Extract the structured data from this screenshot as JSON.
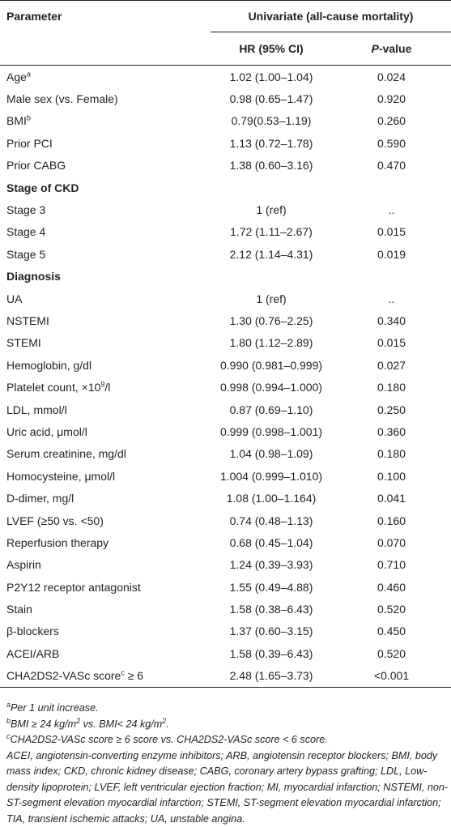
{
  "table": {
    "header": {
      "parameter": "Parameter",
      "group": "Univariate (all-cause mortality)",
      "columns": [
        [
          "HR (95% CI)"
        ],
        [
          {
            "i": "P"
          },
          "-value"
        ]
      ]
    },
    "rows": [
      {
        "label": [
          "Age",
          {
            "sup": "a"
          }
        ],
        "hr": "1.02 (1.00–1.04)",
        "p": "0.024"
      },
      {
        "label": [
          "Male sex (vs. Female)"
        ],
        "hr": "0.98 (0.65–1.47)",
        "p": "0.920"
      },
      {
        "label": [
          "BMI",
          {
            "sup": "b"
          }
        ],
        "hr": "0.79(0.53–1.19)",
        "p": "0.260"
      },
      {
        "label": [
          "Prior PCI"
        ],
        "hr": "1.13 (0.72–1.78)",
        "p": "0.590"
      },
      {
        "label": [
          "Prior CABG"
        ],
        "hr": "1.38 (0.60–3.16)",
        "p": "0.470"
      },
      {
        "section": "Stage of CKD"
      },
      {
        "label": [
          "Stage 3"
        ],
        "hr": "1 (ref)",
        "p": ".."
      },
      {
        "label": [
          "Stage 4"
        ],
        "hr": "1.72 (1.11–2.67)",
        "p": "0.015"
      },
      {
        "label": [
          "Stage 5"
        ],
        "hr": "2.12 (1.14–4.31)",
        "p": "0.019"
      },
      {
        "section": "Diagnosis"
      },
      {
        "label": [
          "UA"
        ],
        "hr": "1 (ref)",
        "p": ".."
      },
      {
        "label": [
          "NSTEMI"
        ],
        "hr": "1.30 (0.76–2.25)",
        "p": "0.340"
      },
      {
        "label": [
          "STEMI"
        ],
        "hr": "1.80 (1.12–2.89)",
        "p": "0.015"
      },
      {
        "label": [
          "Hemoglobin, g/dl"
        ],
        "hr": "0.990 (0.981–0.999)",
        "p": "0.027"
      },
      {
        "label": [
          "Platelet count, ×10",
          {
            "sup": "9"
          },
          "/l"
        ],
        "hr": "0.998 (0.994–1.000)",
        "p": "0.180"
      },
      {
        "label": [
          "LDL, mmol/l"
        ],
        "hr": "0.87 (0.69–1.10)",
        "p": "0.250"
      },
      {
        "label": [
          "Uric acid, μmol/l"
        ],
        "hr": "0.999 (0.998–1.001)",
        "p": "0.360"
      },
      {
        "label": [
          "Serum creatinine, mg/dl"
        ],
        "hr": "1.04 (0.98–1.09)",
        "p": "0.180"
      },
      {
        "label": [
          "Homocysteine, μmol/l"
        ],
        "hr": "1.004 (0.999–1.010)",
        "p": "0.100"
      },
      {
        "label": [
          "D-dimer, mg/l"
        ],
        "hr": "1.08 (1.00–1.164)",
        "p": "0.041"
      },
      {
        "label": [
          "LVEF (≥50 vs. <50)"
        ],
        "hr": "0.74 (0.48–1.13)",
        "p": "0.160"
      },
      {
        "label": [
          "Reperfusion therapy"
        ],
        "hr": "0.68 (0.45–1.04)",
        "p": "0.070"
      },
      {
        "label": [
          "Aspirin"
        ],
        "hr": "1.24 (0.39–3.93)",
        "p": "0.710"
      },
      {
        "label": [
          "P2Y12 receptor antagonist"
        ],
        "hr": "1.55 (0.49–4.88)",
        "p": "0.460"
      },
      {
        "label": [
          "Stain"
        ],
        "hr": "1.58 (0.38–6.43)",
        "p": "0.520"
      },
      {
        "label": [
          "β-blockers"
        ],
        "hr": "1.37 (0.60–3.15)",
        "p": "0.450"
      },
      {
        "label": [
          "ACEI/ARB"
        ],
        "hr": "1.58 (0.39–6.43)",
        "p": "0.520"
      },
      {
        "label": [
          "CHA2DS2-VASc score",
          {
            "sup": "c"
          },
          " ≥ 6"
        ],
        "hr": "2.48 (1.65–3.73)",
        "p": "<0.001"
      }
    ]
  },
  "footnotes": [
    [
      {
        "sup": "a"
      },
      "Per 1 unit increase."
    ],
    [
      {
        "sup": "b"
      },
      "BMI ≥ 24 kg/m",
      {
        "sup": "2"
      },
      " vs. BMI< 24 kg/m",
      {
        "sup": "2"
      },
      "."
    ],
    [
      {
        "sup": "c"
      },
      "CHA2DS2-VASc score ≥ 6 score vs. CHA2DS2-VASc score < 6 score."
    ],
    [
      "ACEI, angiotensin-converting enzyme inhibitors; ARB, angiotensin receptor blockers; BMI, body mass index; CKD, chronic kidney disease; CABG, coronary artery bypass grafting; LDL, Low-density lipoprotein; LVEF, left ventricular ejection fraction; MI, myocardial infarction; NSTEMI, non-ST-segment elevation myocardial infarction; STEMI, ST-segment elevation myocardial infarction; TIA, transient ischemic attacks; UA, unstable angina."
    ]
  ]
}
